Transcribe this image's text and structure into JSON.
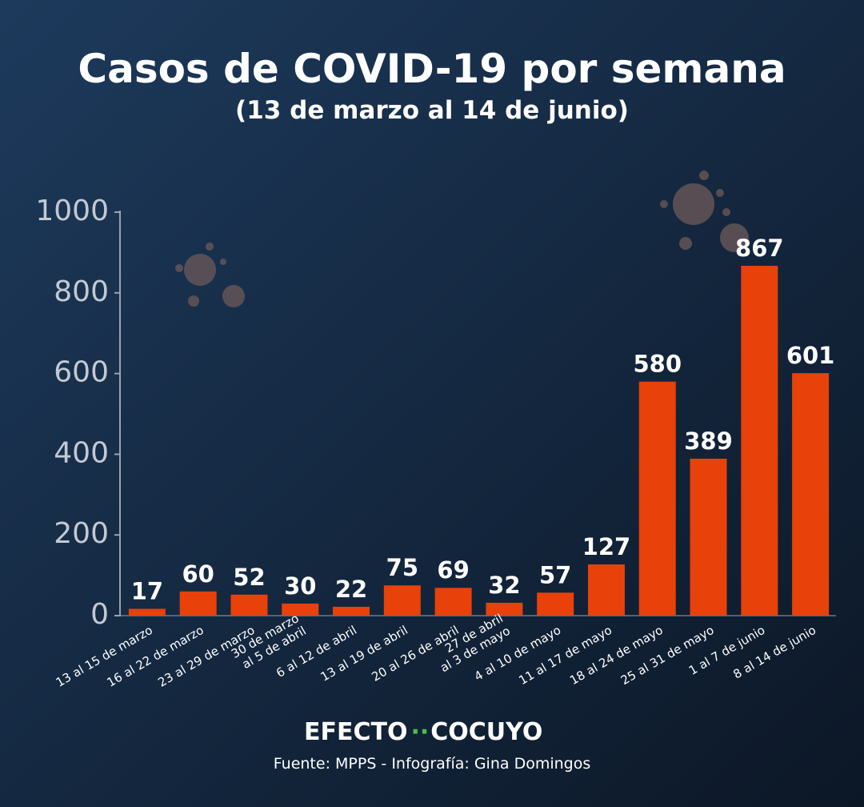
{
  "chart_data": {
    "type": "bar",
    "title": "Casos de COVID-19 por semana",
    "subtitle": "(13 de marzo al 14 de junio)",
    "categories": [
      "13 al 15  de marzo",
      "16 al 22 de marzo",
      "23 al 29 de marzo",
      [
        "30 de marzo",
        "al 5 de abril"
      ],
      "6 al 12 de abril",
      "13 al 19 de abril",
      "20 al 26 de abril",
      [
        "27 de abril",
        "al 3 de mayo"
      ],
      "4 al 10 de mayo",
      "11 al 17 de mayo",
      "18 al 24 de mayo",
      "25 al 31 de mayo",
      "1 al 7 de junio",
      "8 al 14 de junio"
    ],
    "values": [
      17,
      60,
      52,
      30,
      22,
      75,
      69,
      32,
      57,
      127,
      580,
      389,
      867,
      601
    ],
    "color": "#e8410a",
    "ylim": [
      0,
      1000
    ],
    "yticks": [
      0,
      200,
      400,
      600,
      800,
      1000
    ],
    "grid": false
  },
  "footer": {
    "brand_left": "EFECTO",
    "brand_right": "COCUYO",
    "source": "Fuente: MPPS - Infografía: Gina Domingos"
  }
}
